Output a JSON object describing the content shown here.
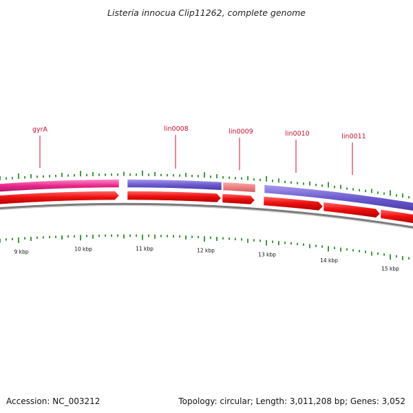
{
  "title": "Listeria innocua Clip11262, complete genome",
  "footer": {
    "accession": "Accession: NC_003212",
    "stats": "Topology: circular; Length: 3,011,208 bp; Genes: 3,052"
  },
  "colors": {
    "background": "#ffffff",
    "forward_gene_red": "#ee1111",
    "cds_magenta": "#e8288a",
    "cds_purple": "#6a5acd",
    "cds_salmon": "#f08080",
    "backbone_gray": "#808080",
    "gc_tick_green": "#2e8b2e",
    "label_red": "#c8102e"
  },
  "gene_labels": [
    "gyrA",
    "lin0008",
    "lin0009",
    "lin0010",
    "lin0011"
  ],
  "scale_labels": [
    "9 kbp",
    "10 kbp",
    "11 kbp",
    "12 kbp",
    "13 kbp",
    "14 kbp",
    "15 kbp"
  ]
}
